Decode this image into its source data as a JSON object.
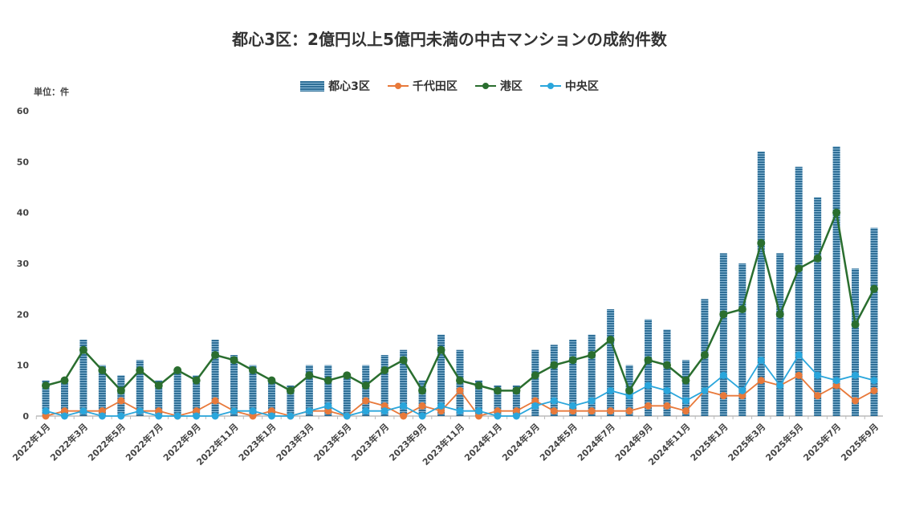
{
  "chart_data": {
    "type": "bar+line",
    "title": "都心3区：2億円以上5億円未満の中古マンションの成約件数",
    "unit_label": "単位：件",
    "ylim": [
      0,
      60
    ],
    "yticks": [
      0,
      10,
      20,
      30,
      40,
      50,
      60
    ],
    "categories": [
      "2022年1月",
      "2022年2月",
      "2022年3月",
      "2022年4月",
      "2022年5月",
      "2022年6月",
      "2022年7月",
      "2022年8月",
      "2022年9月",
      "2022年10月",
      "2022年11月",
      "2022年12月",
      "2023年1月",
      "2023年2月",
      "2023年3月",
      "2023年4月",
      "2023年5月",
      "2023年6月",
      "2023年7月",
      "2023年8月",
      "2023年9月",
      "2023年10月",
      "2023年11月",
      "2023年12月",
      "2024年1月",
      "2024年2月",
      "2024年3月",
      "2024年4月",
      "2024年5月",
      "2024年6月",
      "2024年7月",
      "2024年8月",
      "2024年9月",
      "2024年10月",
      "2024年11月",
      "2024年12月",
      "2025年1月",
      "2025年2月",
      "2025年3月",
      "2025年4月",
      "2025年5月",
      "2025年6月",
      "2025年7月",
      "2025年8月",
      "2025年9月"
    ],
    "series": [
      {
        "name": "都心3区",
        "type": "bar",
        "color": "#2f6f97",
        "values": [
          7,
          7,
          15,
          10,
          8,
          11,
          7,
          9,
          8,
          15,
          12,
          10,
          7,
          6,
          10,
          10,
          8,
          10,
          12,
          13,
          7,
          16,
          13,
          7,
          6,
          6,
          13,
          14,
          15,
          16,
          21,
          10,
          19,
          17,
          11,
          23,
          32,
          30,
          52,
          32,
          49,
          43,
          53,
          29,
          37
        ]
      },
      {
        "name": "千代田区",
        "type": "line",
        "color": "#e8793a",
        "values": [
          0,
          1,
          1,
          1,
          3,
          1,
          1,
          0,
          1,
          3,
          1,
          0,
          1,
          0,
          1,
          1,
          0,
          3,
          2,
          0,
          2,
          1,
          5,
          0,
          1,
          1,
          3,
          1,
          1,
          1,
          1,
          1,
          2,
          2,
          1,
          5,
          4,
          4,
          7,
          6,
          8,
          4,
          6,
          3,
          5
        ]
      },
      {
        "name": "港区",
        "type": "line",
        "color": "#2a6e2f",
        "values": [
          6,
          7,
          13,
          9,
          5,
          9,
          6,
          9,
          7,
          12,
          11,
          9,
          7,
          5,
          8,
          7,
          8,
          6,
          9,
          11,
          5,
          13,
          7,
          6,
          5,
          5,
          8,
          10,
          11,
          12,
          15,
          5,
          11,
          10,
          7,
          12,
          20,
          21,
          34,
          20,
          29,
          31,
          40,
          18,
          25
        ]
      },
      {
        "name": "中央区",
        "type": "line",
        "color": "#2aa6dc",
        "values": [
          1,
          0,
          1,
          0,
          0,
          1,
          0,
          0,
          0,
          0,
          1,
          1,
          0,
          0,
          1,
          2,
          0,
          1,
          1,
          2,
          0,
          2,
          1,
          1,
          0,
          0,
          2,
          3,
          2,
          3,
          5,
          4,
          6,
          5,
          3,
          5,
          8,
          5,
          11,
          6,
          12,
          8,
          7,
          8,
          7
        ]
      }
    ]
  }
}
